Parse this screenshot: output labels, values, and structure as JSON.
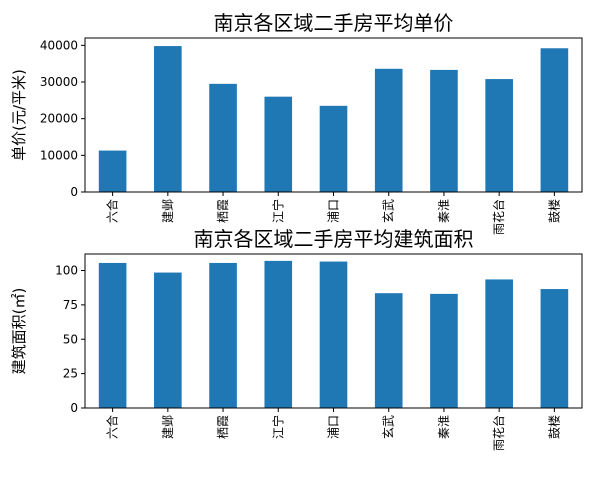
{
  "chart_data": [
    {
      "type": "bar",
      "title": "南京各区域二手房平均单价",
      "xlabel": "",
      "ylabel": "单价(元/平米)",
      "categories": [
        "六合",
        "建邺",
        "栖霞",
        "江宁",
        "浦口",
        "玄武",
        "秦淮",
        "雨花台",
        "鼓楼"
      ],
      "values": [
        11300,
        39800,
        29500,
        26000,
        23500,
        33600,
        33300,
        30800,
        39200
      ],
      "ylim": [
        0,
        42000
      ],
      "yticks": [
        0,
        10000,
        20000,
        30000,
        40000
      ],
      "ytick_labels": [
        "0",
        "10000",
        "20000",
        "30000",
        "40000"
      ],
      "grid": false,
      "bar_color": "#1f77b4"
    },
    {
      "type": "bar",
      "title": "南京各区域二手房平均建筑面积",
      "xlabel": "",
      "ylabel": "建筑面积(㎡)",
      "categories": [
        "六合",
        "建邺",
        "栖霞",
        "江宁",
        "浦口",
        "玄武",
        "秦淮",
        "雨花台",
        "鼓楼"
      ],
      "values": [
        105.5,
        98.5,
        105.5,
        107.0,
        106.5,
        83.5,
        83.0,
        93.5,
        86.5
      ],
      "ylim": [
        0,
        112
      ],
      "yticks": [
        0,
        25,
        50,
        75,
        100
      ],
      "ytick_labels": [
        "0",
        "25",
        "50",
        "75",
        "100"
      ],
      "grid": false,
      "bar_color": "#1f77b4"
    }
  ]
}
